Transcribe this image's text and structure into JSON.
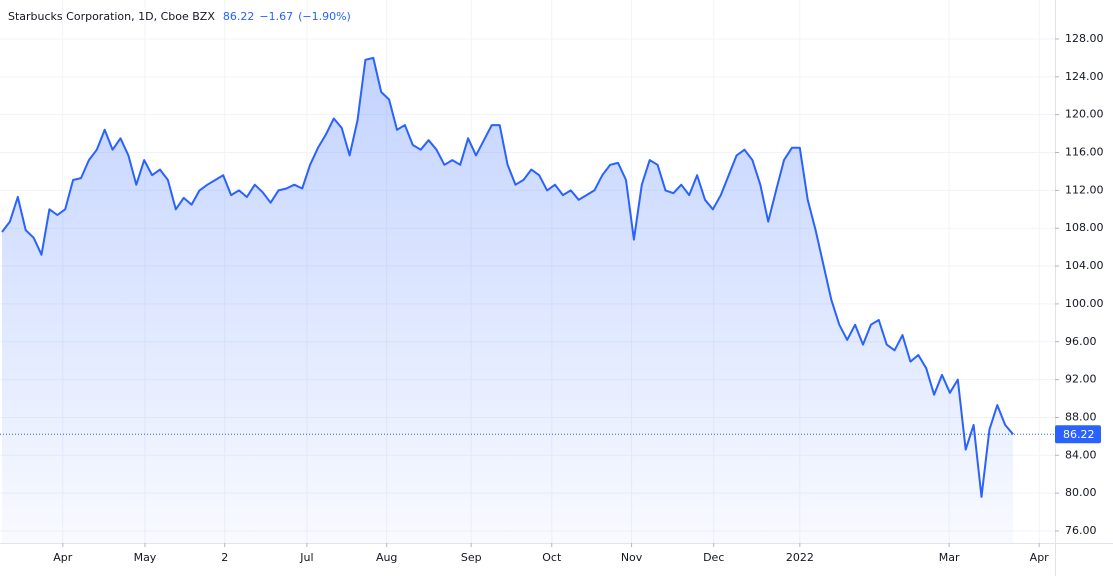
{
  "chart_data": {
    "type": "area",
    "title": "Starbucks Corporation, 1D, Cboe BZX",
    "price": "86.22",
    "change": "−1.67",
    "change_pct": "(−1.90%)",
    "last_price": 86.22,
    "color": "#2962ff",
    "grid": true,
    "values": [
      107.6,
      108.7,
      111.3,
      107.8,
      107.0,
      105.2,
      110.0,
      109.4,
      110.0,
      113.1,
      113.3,
      115.2,
      116.3,
      118.4,
      116.3,
      117.5,
      115.7,
      112.6,
      115.2,
      113.6,
      114.2,
      113.1,
      110.0,
      111.2,
      110.5,
      112.0,
      112.6,
      113.1,
      113.6,
      111.5,
      112.0,
      111.3,
      112.6,
      111.8,
      110.7,
      112.0,
      112.2,
      112.6,
      112.2,
      114.7,
      116.5,
      117.9,
      119.6,
      118.6,
      115.7,
      119.4,
      125.8,
      126.0,
      122.4,
      121.6,
      118.4,
      118.9,
      116.8,
      116.3,
      117.3,
      116.3,
      114.7,
      115.2,
      114.7,
      117.5,
      115.7,
      117.3,
      118.9,
      118.9,
      114.7,
      112.6,
      113.1,
      114.2,
      113.6,
      112.0,
      112.6,
      111.5,
      112.0,
      111.0,
      111.5,
      112.0,
      113.6,
      114.7,
      114.9,
      113.1,
      106.8,
      112.6,
      115.2,
      114.7,
      112.0,
      111.7,
      112.6,
      111.5,
      113.6,
      111.0,
      110.0,
      111.5,
      113.6,
      115.7,
      116.3,
      115.2,
      112.6,
      108.7,
      112.0,
      115.2,
      116.5,
      116.5,
      111.0,
      107.8,
      104.1,
      100.4,
      97.8,
      96.2,
      97.8,
      95.7,
      97.8,
      98.3,
      95.7,
      95.1,
      96.7,
      93.9,
      94.6,
      93.2,
      90.4,
      92.5,
      90.6,
      92.0,
      84.6,
      87.2,
      79.6,
      86.7,
      89.3,
      87.2,
      86.22
    ],
    "xlim": [
      -0.25,
      133.3
    ],
    "xticks": [
      {
        "value": 7.7,
        "label": "Apr"
      },
      {
        "value": 18.1,
        "label": "May"
      },
      {
        "value": 28.2,
        "label": "2"
      },
      {
        "value": 38.6,
        "label": "Jul"
      },
      {
        "value": 48.7,
        "label": "Aug"
      },
      {
        "value": 59.4,
        "label": "Sep"
      },
      {
        "value": 69.6,
        "label": "Oct"
      },
      {
        "value": 79.7,
        "label": "Nov"
      },
      {
        "value": 90.1,
        "label": "Dec"
      },
      {
        "value": 101,
        "label": "2022"
      },
      {
        "value": 119.9,
        "label": "Mar"
      },
      {
        "value": 131.3,
        "label": "Apr"
      }
    ],
    "ylim": [
      74.73,
      132.12
    ],
    "yticks": [
      {
        "value": 76,
        "label": "76.00"
      },
      {
        "value": 80,
        "label": "80.00"
      },
      {
        "value": 84,
        "label": "84.00"
      },
      {
        "value": 88,
        "label": "88.00"
      },
      {
        "value": 92,
        "label": "92.00"
      },
      {
        "value": 96,
        "label": "96.00"
      },
      {
        "value": 100,
        "label": "100.00"
      },
      {
        "value": 104,
        "label": "104.00"
      },
      {
        "value": 108,
        "label": "108.00"
      },
      {
        "value": 112,
        "label": "112.00"
      },
      {
        "value": 116,
        "label": "116.00"
      },
      {
        "value": 120,
        "label": "120.00"
      },
      {
        "value": 124,
        "label": "124.00"
      },
      {
        "value": 128,
        "label": "128.00"
      }
    ]
  }
}
